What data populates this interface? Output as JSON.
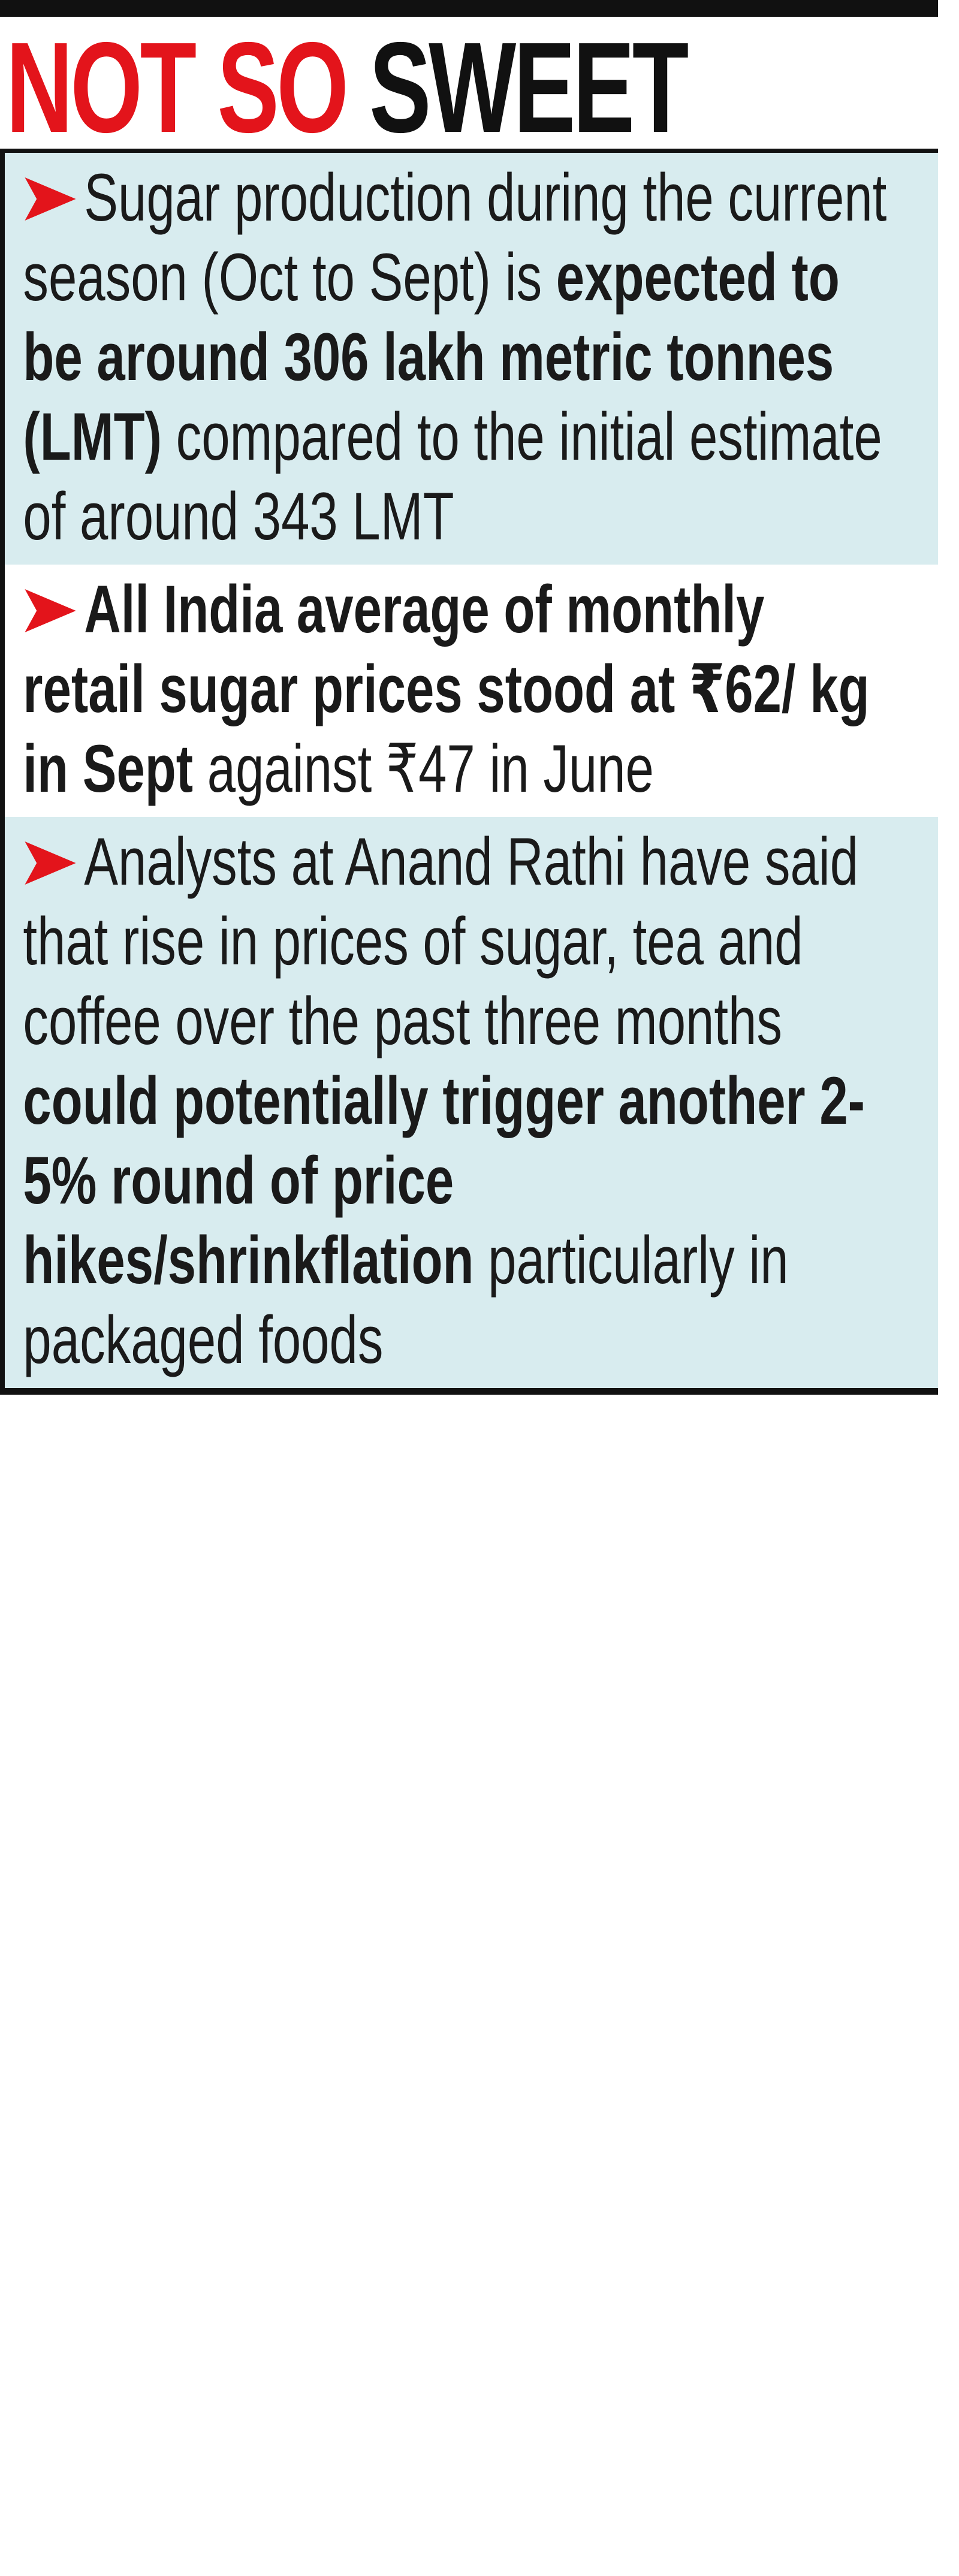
{
  "header": {
    "title": [
      {
        "text": "NOT SO ",
        "color": "#e3141b"
      },
      {
        "text": "SWEET",
        "color": "#111111"
      }
    ]
  },
  "bullets": [
    {
      "segments": [
        {
          "text": "Sugar production during the current season (Oct to Sept) is ",
          "bold": false
        },
        {
          "text": "expected to be around 306 lakh metric tonnes (LMT)",
          "bold": true
        },
        {
          "text": " compared to the initial estimate of around 343 LMT",
          "bold": false
        }
      ],
      "background": "#d8ecef"
    },
    {
      "segments": [
        {
          "text": "All India average of monthly retail sugar prices stood at ₹62/ kg in Sept",
          "bold": true
        },
        {
          "text": " against ₹47 in June",
          "bold": false
        }
      ],
      "background": "#ffffff"
    },
    {
      "segments": [
        {
          "text": "Analysts at Anand Rathi have said that rise in prices of sugar, tea and coffee over the past three months ",
          "bold": false
        },
        {
          "text": "could potentially trigger another 2-5% round of price hikes/shrinkflation",
          "bold": true
        },
        {
          "text": " particularly in packaged foods",
          "bold": false
        }
      ],
      "background": "#d8ecef"
    }
  ]
}
